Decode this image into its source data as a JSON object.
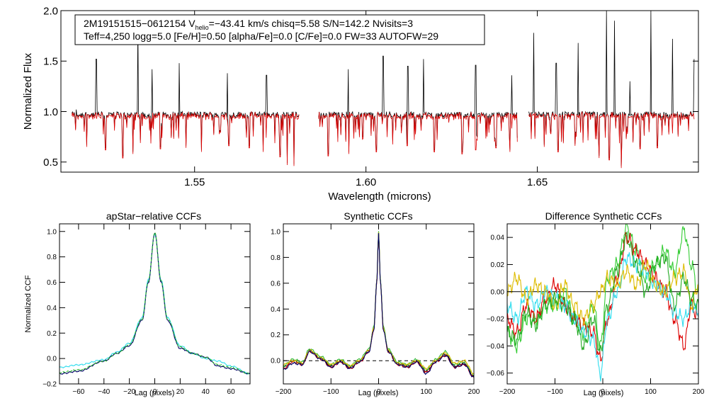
{
  "chart_data": [
    {
      "id": "spectrum",
      "type": "line",
      "title": "",
      "xlabel": "Wavelength (microns)",
      "ylabel": "Normalized Flux",
      "xlim": [
        1.511,
        1.697
      ],
      "ylim": [
        0.4,
        2.0
      ],
      "xticks": [
        1.55,
        1.6,
        1.65
      ],
      "xtick_labels": [
        "1.55",
        "1.60",
        "1.65"
      ],
      "yticks": [
        0.5,
        1.0,
        1.5,
        2.0
      ],
      "ytick_labels": [
        "0.5",
        "1.0",
        "1.5",
        "2.0"
      ],
      "detector_ranges": [
        [
          1.5142,
          1.5806
        ],
        [
          1.5862,
          1.6442
        ],
        [
          1.6475,
          1.6958
        ]
      ],
      "emission_spikes": [
        [
          1.5155,
          1.02
        ],
        [
          1.5213,
          1.52
        ],
        [
          1.5335,
          1.85
        ],
        [
          1.5376,
          1.42
        ],
        [
          1.5455,
          1.48
        ],
        [
          1.5595,
          1.38
        ],
        [
          1.571,
          1.36
        ],
        [
          1.5948,
          1.42
        ],
        [
          1.605,
          1.55
        ],
        [
          1.6122,
          1.45
        ],
        [
          1.6168,
          1.52
        ],
        [
          1.632,
          1.46
        ],
        [
          1.6425,
          1.36
        ],
        [
          1.649,
          1.78
        ],
        [
          1.6555,
          1.48
        ],
        [
          1.6619,
          1.68
        ],
        [
          1.6702,
          2.0
        ],
        [
          1.6725,
          1.9
        ],
        [
          1.677,
          1.3
        ],
        [
          1.6832,
          2.0
        ],
        [
          1.6895,
          1.72
        ],
        [
          1.6958,
          1.52
        ]
      ],
      "absorption_dips": [
        [
          1.5185,
          0.65
        ],
        [
          1.524,
          0.62
        ],
        [
          1.529,
          0.54
        ],
        [
          1.532,
          0.58
        ],
        [
          1.54,
          0.63
        ],
        [
          1.5475,
          0.64
        ],
        [
          1.552,
          0.6
        ],
        [
          1.56,
          0.66
        ],
        [
          1.566,
          0.64
        ],
        [
          1.57,
          0.6
        ],
        [
          1.575,
          0.55
        ],
        [
          1.577,
          0.47
        ],
        [
          1.579,
          0.46
        ],
        [
          1.589,
          0.56
        ],
        [
          1.595,
          0.58
        ],
        [
          1.603,
          0.6
        ],
        [
          1.612,
          0.66
        ],
        [
          1.62,
          0.6
        ],
        [
          1.628,
          0.58
        ],
        [
          1.632,
          0.62
        ],
        [
          1.638,
          0.64
        ],
        [
          1.642,
          0.6
        ],
        [
          1.652,
          0.65
        ],
        [
          1.656,
          0.6
        ],
        [
          1.661,
          0.66
        ],
        [
          1.668,
          0.54
        ],
        [
          1.671,
          0.52
        ],
        [
          1.6745,
          0.44
        ],
        [
          1.68,
          0.63
        ],
        [
          1.685,
          0.64
        ]
      ],
      "series": [
        {
          "name": "apStar spectrum",
          "color": "#000000"
        },
        {
          "name": "best-fit synthetic spectrum",
          "color": "#dd0000"
        }
      ],
      "annotation": {
        "line1_pre": "2M19151515−0612154  V",
        "line1_sub": "helio",
        "line1_post": "=−43.41 km/s  chisq=5.58  S/N=142.2  Nvisits=3",
        "line2": "Teff=4,250 logg=5.0 [Fe/H]=0.50 [alpha/Fe]=0.0 [C/Fe]=0.0 FW=33 AUTOFW=29"
      }
    },
    {
      "id": "apstar_ccf",
      "type": "line",
      "title": "apStar−relative CCFs",
      "xlabel": "Lag (pixels)",
      "ylabel": "Normalized CCF",
      "xlim": [
        -75,
        75
      ],
      "ylim": [
        -0.2,
        1.06
      ],
      "xticks": [
        -60,
        -40,
        -20,
        0,
        20,
        40,
        60
      ],
      "xtick_labels": [
        "−60",
        "−40",
        "−20",
        "0",
        "20",
        "40",
        "60"
      ],
      "yticks": [
        -0.2,
        0.0,
        0.2,
        0.4,
        0.6,
        0.8,
        1.0
      ],
      "ytick_labels": [
        "−0.2",
        "0.0",
        "0.2",
        "0.4",
        "0.6",
        "0.8",
        "1.0"
      ],
      "series": [
        {
          "name": "cyan",
          "color": "#33ddee",
          "x": [
            -75,
            -60,
            -40,
            -30,
            -20,
            -10,
            -5,
            0,
            5,
            10,
            20,
            30,
            40,
            50,
            60,
            75
          ],
          "y": [
            -0.07,
            -0.05,
            -0.01,
            0.05,
            0.12,
            0.32,
            0.62,
            0.98,
            0.62,
            0.32,
            0.1,
            0.04,
            0.0,
            -0.02,
            -0.06,
            -0.12
          ]
        },
        {
          "name": "navy",
          "color": "#000066",
          "x": [
            -75,
            -60,
            -40,
            -30,
            -20,
            -10,
            -5,
            0,
            5,
            10,
            20,
            30,
            40,
            50,
            60,
            75
          ],
          "y": [
            -0.12,
            -0.1,
            -0.02,
            0.04,
            0.1,
            0.3,
            0.6,
            0.99,
            0.6,
            0.3,
            0.08,
            0.04,
            0.01,
            -0.06,
            -0.08,
            -0.12
          ]
        },
        {
          "name": "green",
          "color": "#33bb33",
          "dashed": true,
          "x": [
            -75,
            -60,
            -40,
            -30,
            -20,
            -10,
            -5,
            0,
            5,
            10,
            20,
            30,
            40,
            50,
            60,
            75
          ],
          "y": [
            -0.11,
            -0.09,
            -0.02,
            0.04,
            0.11,
            0.31,
            0.61,
            0.99,
            0.61,
            0.31,
            0.09,
            0.04,
            0.01,
            -0.05,
            -0.07,
            -0.12
          ]
        }
      ]
    },
    {
      "id": "synthetic_ccf",
      "type": "line",
      "title": "Synthetic CCFs",
      "xlabel": "Lag (pixels)",
      "ylabel": "",
      "xlim": [
        -200,
        200
      ],
      "ylim": [
        -0.18,
        1.06
      ],
      "xticks": [
        -200,
        -100,
        0,
        100,
        200
      ],
      "xtick_labels": [
        "−200",
        "−100",
        "0",
        "100",
        "200"
      ],
      "yticks": [
        0.0,
        0.2,
        0.4,
        0.6,
        0.8,
        1.0
      ],
      "ytick_labels": [
        "0.0",
        "0.2",
        "0.4",
        "0.6",
        "0.8",
        "1.0"
      ],
      "zero_line": 0.0,
      "series": [
        {
          "name": "black",
          "color": "#000000",
          "x": [
            -200,
            -180,
            -160,
            -145,
            -120,
            -100,
            -80,
            -60,
            -40,
            -20,
            -10,
            -4,
            0,
            4,
            10,
            20,
            40,
            60,
            80,
            100,
            120,
            140,
            160,
            180,
            200
          ],
          "y": [
            -0.05,
            0.0,
            -0.02,
            0.08,
            0.02,
            -0.04,
            0.0,
            -0.05,
            0.0,
            0.08,
            0.25,
            0.6,
            1.0,
            0.6,
            0.25,
            0.08,
            -0.02,
            -0.04,
            0.0,
            -0.08,
            0.0,
            0.05,
            -0.04,
            -0.02,
            -0.12
          ]
        },
        {
          "name": "red",
          "color": "#dd0000",
          "x": [
            -200,
            -180,
            -160,
            -145,
            -120,
            -100,
            -80,
            -60,
            -40,
            -20,
            -10,
            -4,
            0,
            4,
            10,
            20,
            40,
            60,
            80,
            100,
            120,
            140,
            160,
            180,
            200
          ],
          "y": [
            -0.06,
            -0.01,
            -0.03,
            0.07,
            0.01,
            -0.05,
            -0.01,
            -0.06,
            -0.01,
            0.07,
            0.24,
            0.59,
            0.99,
            0.59,
            0.24,
            0.07,
            -0.03,
            -0.05,
            -0.01,
            -0.09,
            -0.01,
            0.04,
            -0.05,
            -0.03,
            -0.13
          ]
        },
        {
          "name": "green",
          "color": "#33bb33",
          "x": [
            -200,
            -180,
            -160,
            -145,
            -120,
            -100,
            -80,
            -60,
            -40,
            -20,
            -10,
            -4,
            0,
            4,
            10,
            20,
            40,
            60,
            80,
            100,
            120,
            140,
            160,
            180,
            200
          ],
          "y": [
            -0.04,
            0.01,
            -0.01,
            0.09,
            0.03,
            -0.03,
            0.01,
            -0.04,
            0.01,
            0.09,
            0.26,
            0.61,
            1.0,
            0.61,
            0.26,
            0.09,
            -0.01,
            -0.03,
            0.01,
            -0.07,
            0.01,
            0.07,
            -0.03,
            -0.01,
            -0.11
          ]
        },
        {
          "name": "yellow",
          "color": "#ddbb00",
          "x": [
            -200,
            -180,
            -160,
            -145,
            -120,
            -100,
            -80,
            -60,
            -40,
            -20,
            -10,
            -4,
            0,
            4,
            10,
            20,
            40,
            60,
            80,
            100,
            120,
            140,
            160,
            180,
            200
          ],
          "y": [
            -0.03,
            0.0,
            -0.02,
            0.08,
            0.02,
            -0.03,
            0.0,
            -0.04,
            0.0,
            0.08,
            0.25,
            0.6,
            0.99,
            0.6,
            0.25,
            0.08,
            -0.02,
            -0.03,
            0.0,
            -0.06,
            0.0,
            0.06,
            -0.02,
            0.0,
            -0.1
          ]
        },
        {
          "name": "navy",
          "color": "#000066",
          "x": [
            -200,
            -180,
            -160,
            -145,
            -120,
            -100,
            -80,
            -60,
            -40,
            -20,
            -10,
            -4,
            0,
            4,
            10,
            20,
            40,
            60,
            80,
            100,
            120,
            140,
            160,
            180,
            200
          ],
          "y": [
            -0.07,
            -0.02,
            -0.03,
            0.07,
            0.01,
            -0.05,
            -0.01,
            -0.06,
            -0.01,
            0.07,
            0.24,
            0.59,
            0.99,
            0.59,
            0.24,
            0.07,
            -0.03,
            -0.05,
            -0.01,
            -0.1,
            -0.01,
            0.04,
            -0.05,
            -0.03,
            -0.13
          ]
        }
      ]
    },
    {
      "id": "difference_ccf",
      "type": "line",
      "title": "Difference Synthetic CCFs",
      "xlabel": "Lag (pixels)",
      "ylabel": "",
      "xlim": [
        -200,
        200
      ],
      "ylim": [
        -0.068,
        0.05
      ],
      "xticks": [
        -200,
        -100,
        0,
        100,
        200
      ],
      "xtick_labels": [
        "−200",
        "−100",
        "0",
        "100",
        "200"
      ],
      "yticks": [
        -0.06,
        -0.04,
        -0.02,
        0.0,
        0.02,
        0.04
      ],
      "ytick_labels": [
        "−0.06",
        "−0.04",
        "−0.02",
        "0.00",
        "0.02",
        "0.04"
      ],
      "zero_line": 0.0,
      "series": [
        {
          "name": "green",
          "color": "#33cc33",
          "x": [
            -200,
            -180,
            -160,
            -140,
            -120,
            -100,
            -80,
            -60,
            -40,
            -20,
            -5,
            10,
            30,
            50,
            70,
            90,
            110,
            130,
            150,
            170,
            185,
            200
          ],
          "y": [
            -0.03,
            -0.04,
            -0.02,
            -0.02,
            -0.01,
            -0.01,
            0.0,
            -0.02,
            -0.03,
            -0.01,
            -0.04,
            0.01,
            0.02,
            0.048,
            0.03,
            0.01,
            0.02,
            0.03,
            0.015,
            0.045,
            0.02,
            0.0
          ]
        },
        {
          "name": "red",
          "color": "#dd0000",
          "x": [
            -200,
            -180,
            -160,
            -140,
            -120,
            -100,
            -80,
            -60,
            -40,
            -20,
            -5,
            10,
            30,
            50,
            70,
            90,
            110,
            130,
            150,
            170,
            185,
            200
          ],
          "y": [
            -0.02,
            -0.03,
            -0.01,
            -0.02,
            -0.005,
            0.005,
            -0.01,
            -0.02,
            -0.025,
            -0.03,
            -0.05,
            -0.02,
            0.01,
            0.04,
            0.03,
            0.02,
            0.01,
            0.0,
            -0.02,
            -0.04,
            -0.01,
            -0.02
          ]
        },
        {
          "name": "cyan",
          "color": "#33ddee",
          "x": [
            -200,
            -180,
            -160,
            -140,
            -120,
            -100,
            -80,
            -60,
            -40,
            -20,
            -5,
            10,
            30,
            50,
            70,
            90,
            110,
            130,
            150,
            170,
            185,
            200
          ],
          "y": [
            -0.01,
            -0.02,
            0.0,
            -0.01,
            0.0,
            -0.005,
            -0.01,
            -0.02,
            -0.03,
            -0.035,
            -0.06,
            -0.02,
            0.0,
            0.025,
            0.02,
            0.015,
            0.005,
            0.0,
            -0.015,
            -0.02,
            -0.01,
            -0.015
          ]
        },
        {
          "name": "yellow",
          "color": "#ddbb00",
          "x": [
            -200,
            -180,
            -160,
            -140,
            -120,
            -100,
            -80,
            -60,
            -40,
            -20,
            -5,
            10,
            30,
            50,
            70,
            90,
            110,
            130,
            150,
            170,
            185,
            200
          ],
          "y": [
            0.0,
            0.01,
            -0.005,
            0.005,
            0.0,
            -0.01,
            0.005,
            -0.01,
            -0.02,
            -0.01,
            0.0,
            0.01,
            0.005,
            0.015,
            0.005,
            0.02,
            0.005,
            0.0,
            0.01,
            0.015,
            -0.01,
            0.005
          ]
        },
        {
          "name": "darkgreen",
          "color": "#22aa22",
          "x": [
            -200,
            -180,
            -160,
            -140,
            -120,
            -100,
            -80,
            -60,
            -40,
            -20,
            -5,
            10,
            30,
            50,
            70,
            90,
            110,
            130,
            150,
            170,
            185,
            200
          ],
          "y": [
            -0.03,
            -0.035,
            -0.015,
            -0.025,
            -0.01,
            -0.005,
            -0.01,
            -0.02,
            -0.04,
            -0.02,
            -0.045,
            -0.01,
            0.015,
            0.04,
            0.02,
            0.0,
            0.02,
            0.025,
            -0.01,
            0.01,
            -0.005,
            -0.01
          ]
        }
      ]
    }
  ]
}
